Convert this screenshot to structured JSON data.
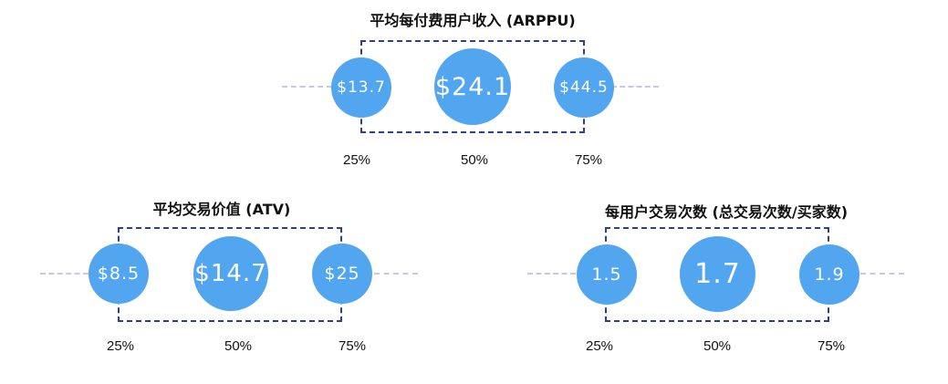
{
  "colors": {
    "circle": "#52a6f0",
    "box": "#2f3f8f",
    "whisker": "#c8c8e6"
  },
  "panels": [
    {
      "title": "平均每付费用户收入 (ARPPU)",
      "values": [
        "$13.7",
        "$24.1",
        "$44.5"
      ],
      "percentiles": [
        "25%",
        "50%",
        "75%"
      ]
    },
    {
      "title": "平均交易价值 (ATV)",
      "values": [
        "$8.5",
        "$14.7",
        "$25"
      ],
      "percentiles": [
        "25%",
        "50%",
        "75%"
      ]
    },
    {
      "title": "每用户交易次数 (总交易次数/买家数)",
      "values": [
        "1.5",
        "1.7",
        "1.9"
      ],
      "percentiles": [
        "25%",
        "50%",
        "75%"
      ]
    }
  ]
}
